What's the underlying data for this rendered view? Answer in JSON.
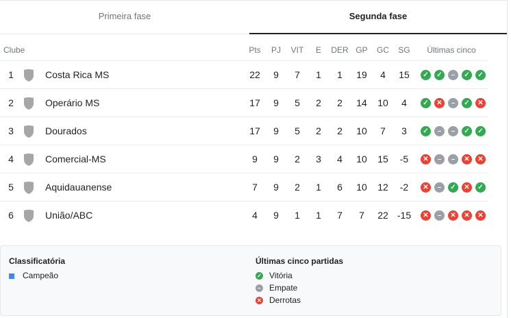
{
  "tabs": [
    {
      "label": "Primeira fase",
      "active": false
    },
    {
      "label": "Segunda fase",
      "active": true
    }
  ],
  "columns": {
    "club": "Clube",
    "pts": "Pts",
    "pj": "PJ",
    "vit": "VIT",
    "e": "E",
    "der": "DER",
    "gp": "GP",
    "gc": "GC",
    "sg": "SG",
    "last5": "Últimas cinco"
  },
  "colors": {
    "win": "#34a853",
    "draw": "#9aa0a6",
    "loss": "#ea4335",
    "champion": "#4285f4",
    "shield": "#a6a6a6"
  },
  "rows": [
    {
      "pos": "1",
      "club": "Costa Rica MS",
      "pts": "22",
      "pj": "9",
      "vit": "7",
      "e": "1",
      "der": "1",
      "gp": "19",
      "gc": "4",
      "sg": "15",
      "last5": [
        "W",
        "W",
        "D",
        "W",
        "W"
      ]
    },
    {
      "pos": "2",
      "club": "Operário MS",
      "pts": "17",
      "pj": "9",
      "vit": "5",
      "e": "2",
      "der": "2",
      "gp": "14",
      "gc": "10",
      "sg": "4",
      "last5": [
        "W",
        "L",
        "D",
        "W",
        "L"
      ]
    },
    {
      "pos": "3",
      "club": "Dourados",
      "pts": "17",
      "pj": "9",
      "vit": "5",
      "e": "2",
      "der": "2",
      "gp": "10",
      "gc": "7",
      "sg": "3",
      "last5": [
        "W",
        "D",
        "D",
        "W",
        "W"
      ]
    },
    {
      "pos": "4",
      "club": "Comercial-MS",
      "pts": "9",
      "pj": "9",
      "vit": "2",
      "e": "3",
      "der": "4",
      "gp": "10",
      "gc": "15",
      "sg": "-5",
      "last5": [
        "L",
        "D",
        "D",
        "L",
        "L"
      ]
    },
    {
      "pos": "5",
      "club": "Aquidauanense",
      "pts": "7",
      "pj": "9",
      "vit": "2",
      "e": "1",
      "der": "6",
      "gp": "10",
      "gc": "12",
      "sg": "-2",
      "last5": [
        "L",
        "D",
        "W",
        "L",
        "W"
      ]
    },
    {
      "pos": "6",
      "club": "União/ABC",
      "pts": "4",
      "pj": "9",
      "vit": "1",
      "e": "1",
      "der": "7",
      "gp": "7",
      "gc": "22",
      "sg": "-15",
      "last5": [
        "L",
        "D",
        "L",
        "L",
        "L"
      ]
    }
  ],
  "legend": {
    "classification_title": "Classificatória",
    "champion": "Campeão",
    "last5_title": "Últimas cinco partidas",
    "win": "Vitória",
    "draw": "Empate",
    "loss": "Derrotas"
  }
}
